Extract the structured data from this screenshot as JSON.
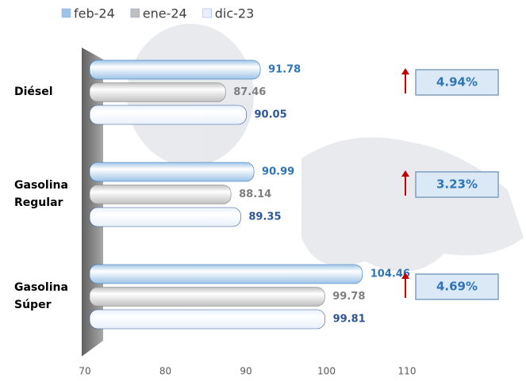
{
  "chart_data": {
    "type": "bar",
    "orientation": "horizontal",
    "categories": [
      "Diésel",
      "Gasolina Regular",
      "Gasolina Súper"
    ],
    "series": [
      {
        "name": "feb-24",
        "color": "#9dc3e6",
        "label_color": "#2e75b6",
        "values": [
          91.78,
          90.99,
          104.46
        ]
      },
      {
        "name": "ene-24",
        "color": "#bfbfbf",
        "label_color": "#7f7f7f",
        "values": [
          87.46,
          88.14,
          99.78
        ]
      },
      {
        "name": "dic-23",
        "color": "#e9f0fb",
        "label_color": "#2f5597",
        "values": [
          90.05,
          89.35,
          99.81
        ]
      }
    ],
    "annotations": [
      "4.94%",
      "3.23%",
      "4.69%"
    ],
    "xlim": [
      70,
      110
    ],
    "xticks": [
      70,
      80,
      90,
      100,
      110
    ],
    "grid": false,
    "legend": "top-left"
  }
}
